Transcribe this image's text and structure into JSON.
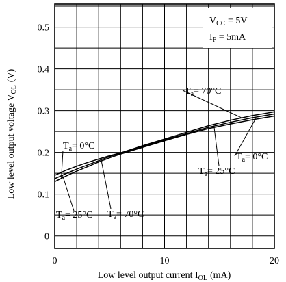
{
  "chart_data": {
    "type": "line",
    "title": "",
    "xlabel_main": "Low level output current I",
    "xlabel_sub": "OL",
    "xlabel_unit": "(mA)",
    "ylabel_main": "Low level output voltage V",
    "ylabel_sub": "OL",
    "ylabel_unit": "(V)",
    "xlim": [
      0,
      20
    ],
    "ylim": [
      -0.03,
      0.555
    ],
    "x_ticks": [
      "0",
      "10",
      "20"
    ],
    "y_ticks": [
      "0",
      "0.1",
      "0.2",
      "0.3",
      "0.4",
      "0.5"
    ],
    "grid": true,
    "conditions": [
      {
        "label": "V",
        "sub": "CC",
        "value": " = 5V"
      },
      {
        "label": "I",
        "sub": "F",
        "value": " = 5mA"
      }
    ],
    "series": [
      {
        "name": "Ta = 0°C",
        "x": [
          0,
          1,
          2,
          3,
          4,
          5,
          6,
          8,
          10,
          12,
          14,
          16,
          18,
          20
        ],
        "y": [
          0.13,
          0.143,
          0.155,
          0.166,
          0.177,
          0.187,
          0.196,
          0.212,
          0.228,
          0.243,
          0.257,
          0.268,
          0.278,
          0.287
        ]
      },
      {
        "name": "Ta = 25°C",
        "x": [
          0,
          1,
          2,
          3,
          4,
          5,
          6,
          8,
          10,
          12,
          14,
          16,
          18,
          20
        ],
        "y": [
          0.137,
          0.149,
          0.16,
          0.17,
          0.18,
          0.19,
          0.198,
          0.214,
          0.23,
          0.245,
          0.26,
          0.272,
          0.283,
          0.292
        ]
      },
      {
        "name": "Ta = 70°C",
        "x": [
          0,
          1,
          2,
          3,
          4,
          5,
          6,
          8,
          10,
          12,
          14,
          16,
          18,
          20
        ],
        "y": [
          0.145,
          0.157,
          0.167,
          0.176,
          0.184,
          0.192,
          0.199,
          0.216,
          0.232,
          0.248,
          0.264,
          0.277,
          0.288,
          0.297
        ]
      }
    ],
    "annotations": [
      {
        "text_pre": "T",
        "text_sub": "a",
        "text_post": "= 70°C"
      },
      {
        "text_pre": "T",
        "text_sub": "a",
        "text_post": "= 0°C"
      },
      {
        "text_pre": "T",
        "text_sub": "a",
        "text_post": "= 0°C"
      },
      {
        "text_pre": "T",
        "text_sub": "a",
        "text_post": "= 25°C"
      },
      {
        "text_pre": "T",
        "text_sub": "a",
        "text_post": "= 25°C"
      },
      {
        "text_pre": "T",
        "text_sub": "a",
        "text_post": "= 70°C"
      }
    ]
  }
}
